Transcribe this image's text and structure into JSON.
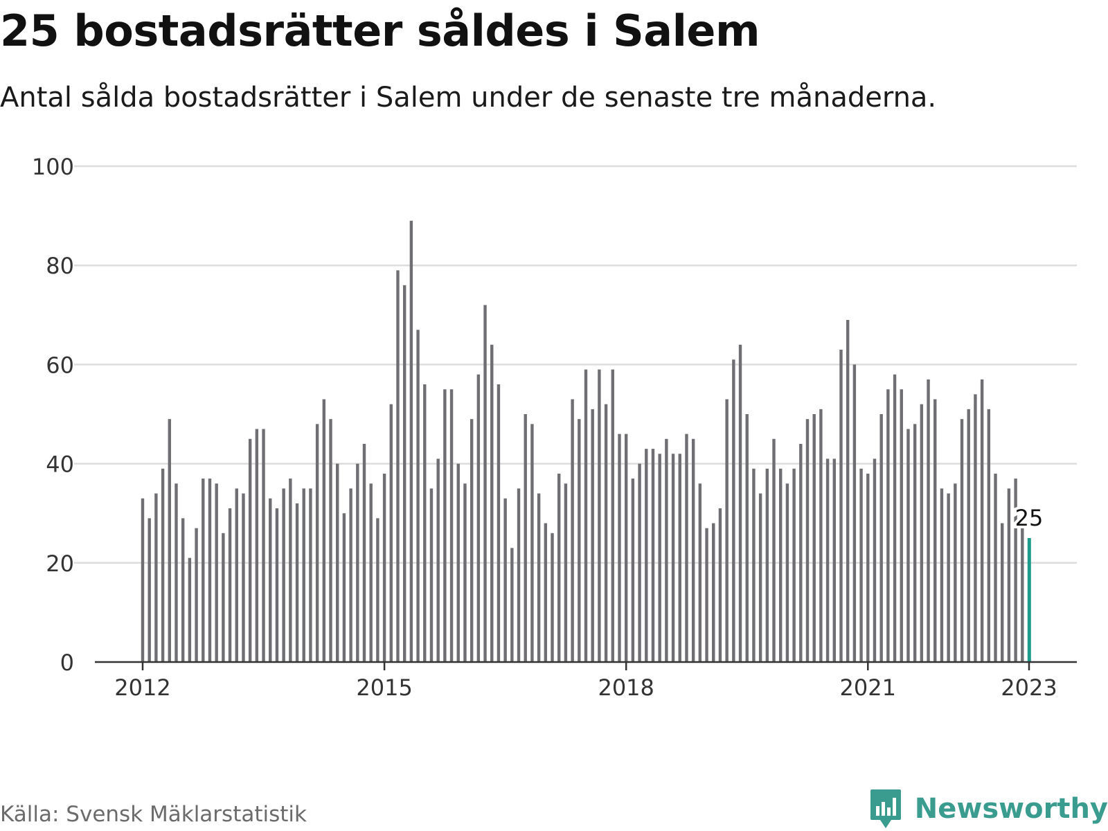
{
  "title": "25 bostadsrätter såldes i Salem",
  "subtitle": "Antal sålda bostadsrätter i Salem under de senaste tre månaderna.",
  "source": "Källa: Svensk Mäklarstatistik",
  "brand": {
    "name": "Newsworthy",
    "icon": "newsworthy-logo-icon"
  },
  "colors": {
    "bar": "#6f6f73",
    "highlight": "#1c9b8c",
    "grid": "#dddddd",
    "axis": "#333333",
    "brand": "#3a9b8f"
  },
  "chart_data": {
    "type": "bar",
    "start": "2012-01",
    "frequency": "monthly",
    "ylim": [
      0,
      100
    ],
    "yticks": [
      0,
      20,
      40,
      60,
      80,
      100
    ],
    "xticks": [
      "2012",
      "2015",
      "2018",
      "2021",
      "2023"
    ],
    "grid": true,
    "highlight_label": "25",
    "series": [
      {
        "values": [
          33,
          29,
          34,
          39,
          49,
          36,
          29,
          21,
          27,
          37,
          37,
          36,
          26,
          31,
          35,
          34,
          45,
          47,
          47,
          33,
          31,
          35,
          37,
          32,
          35,
          35,
          48,
          53,
          49,
          40,
          30,
          35,
          40,
          44,
          36,
          29,
          38,
          52,
          79,
          76,
          89,
          67,
          56,
          35,
          41,
          55,
          55,
          40,
          36,
          49,
          58,
          72,
          64,
          56,
          33,
          23,
          35,
          50,
          48,
          34,
          28,
          26,
          38,
          36,
          53,
          49,
          59,
          51,
          59,
          52,
          59,
          46,
          46,
          37,
          40,
          43,
          43,
          42,
          45,
          42,
          42,
          46,
          45,
          36,
          27,
          28,
          31,
          53,
          61,
          64,
          50,
          39,
          34,
          39,
          45,
          39,
          36,
          39,
          44,
          49,
          50,
          51,
          41,
          41,
          63,
          69,
          60,
          39,
          38,
          41,
          50,
          55,
          58,
          55,
          47,
          48,
          52,
          57,
          53,
          35,
          34,
          36,
          49,
          51,
          54,
          57,
          51,
          38,
          28,
          35,
          37,
          27,
          25
        ]
      }
    ]
  }
}
